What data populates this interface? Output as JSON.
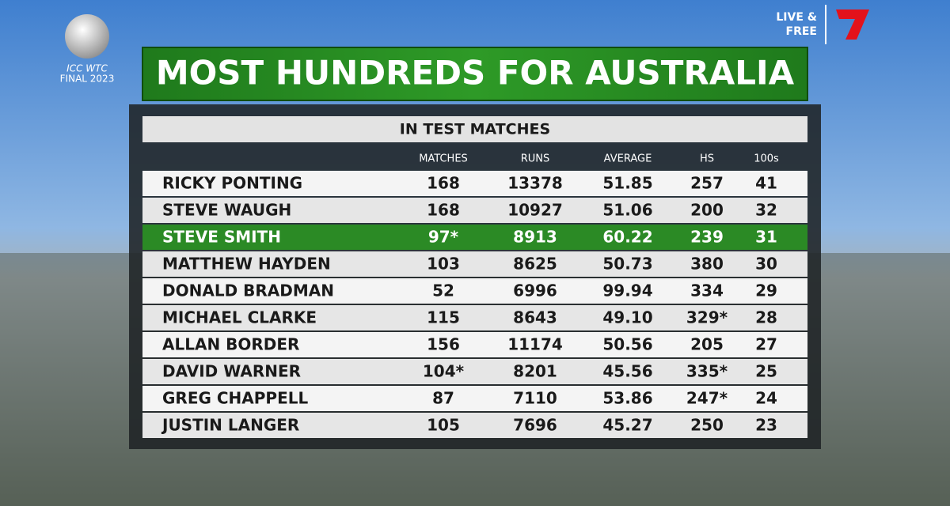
{
  "logo": {
    "line1": "ICC WTC",
    "line2": "FINAL 2023"
  },
  "broadcaster": {
    "line1": "LIVE &",
    "line2": "FREE"
  },
  "title": "MOST HUNDREDS FOR AUSTRALIA",
  "subtitle": "IN TEST MATCHES",
  "table": {
    "columns": [
      "MATCHES",
      "RUNS",
      "AVERAGE",
      "HS",
      "100s"
    ],
    "rows": [
      {
        "cells": [
          "RICKY PONTING",
          "168",
          "13378",
          "51.85",
          "257",
          "41"
        ],
        "highlight": false
      },
      {
        "cells": [
          "STEVE WAUGH",
          "168",
          "10927",
          "51.06",
          "200",
          "32"
        ],
        "highlight": false
      },
      {
        "cells": [
          "STEVE SMITH",
          "97*",
          "8913",
          "60.22",
          "239",
          "31"
        ],
        "highlight": true
      },
      {
        "cells": [
          "MATTHEW HAYDEN",
          "103",
          "8625",
          "50.73",
          "380",
          "30"
        ],
        "highlight": false
      },
      {
        "cells": [
          "DONALD BRADMAN",
          "52",
          "6996",
          "99.94",
          "334",
          "29"
        ],
        "highlight": false
      },
      {
        "cells": [
          "MICHAEL CLARKE",
          "115",
          "8643",
          "49.10",
          "329*",
          "28"
        ],
        "highlight": false
      },
      {
        "cells": [
          "ALLAN BORDER",
          "156",
          "11174",
          "50.56",
          "205",
          "27"
        ],
        "highlight": false
      },
      {
        "cells": [
          "DAVID WARNER",
          "104*",
          "8201",
          "45.56",
          "335*",
          "25"
        ],
        "highlight": false
      },
      {
        "cells": [
          "GREG CHAPPELL",
          "87",
          "7110",
          "53.86",
          "247*",
          "24"
        ],
        "highlight": false
      },
      {
        "cells": [
          "JUSTIN LANGER",
          "105",
          "7696",
          "45.27",
          "250",
          "23"
        ],
        "highlight": false
      }
    ]
  }
}
